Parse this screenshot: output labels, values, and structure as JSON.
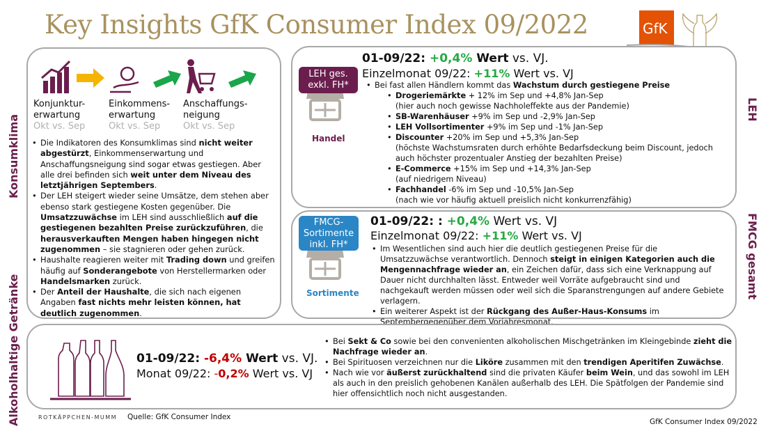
{
  "title": "Key Insights GfK Consumer Index 09/2022",
  "brand": {
    "logo_text": "GfK",
    "logo_color": "#e35205",
    "accent": "#6b1e4d",
    "green": "#27a844",
    "red": "#c00000"
  },
  "side_labels": {
    "konsumklima": "Konsumklima",
    "alkohol": "Alkoholhaltige Getränke",
    "leh": "LEH",
    "fmcg": "FMCG gesamt"
  },
  "konsumklima": {
    "indicators": [
      {
        "line1": "Konjunktur-",
        "line2": "erwartung",
        "period": "Okt vs. Sep",
        "trend": "up"
      },
      {
        "line1": "Einkommens-",
        "line2": "erwartung",
        "period": "Okt vs. Sep",
        "trend": "up"
      },
      {
        "line1": "Anschaffungs-",
        "line2": "neigung",
        "period": "Okt vs. Sep",
        "trend": "up"
      }
    ],
    "bullets": [
      [
        "Die Indikatoren des Konsumklimas sind ",
        "nicht weiter abgestürzt",
        ", Einkommenserwartung und Anschaffungsneigung sind sogar etwas gestiegen. Aber alle drei befinden sich ",
        "weit unter dem Niveau des letztjährigen Septembers",
        "."
      ],
      [
        "Der LEH steigert wieder seine Umsätze, dem stehen aber ebenso stark gestiegene Kosten gegenüber. Die ",
        "Umsatzzuwächse",
        " im LEH sind ausschließlich ",
        "auf die gestiegenen bezahlten Preise zurückzuführen",
        ", die ",
        "herausverkauften Mengen haben hingegen nicht zugenommen",
        " – sie stagnieren oder gehen zurück."
      ],
      [
        "Haushalte reagieren weiter mit ",
        "Trading down",
        " und greifen häufig auf ",
        "Sonderangebote",
        " von Herstellermarken oder ",
        "Handelsmarken",
        " zurück."
      ],
      [
        "Der ",
        "Anteil der Haushalte",
        ", die sich nach eigenen Angaben ",
        "fast nichts mehr leisten können, hat deutlich zugenommen",
        "."
      ]
    ]
  },
  "leh": {
    "tag": [
      "LEH ges.",
      "exkl. FH*"
    ],
    "icon_label": "Handel",
    "h1": {
      "prefix": "01-09/22: ",
      "value": "+0,4%",
      "bold": " Wert",
      "suffix": " vs. VJ."
    },
    "h2": {
      "prefix": "Einzelmonat 09/22: ",
      "value": "+11%",
      "suffix": " Wert vs. VJ"
    },
    "intro": [
      "Bei fast allen Händlern kommt das ",
      "Wachstum durch gestiegene Preise"
    ],
    "items": [
      {
        "name": "Drogeriemärkte",
        "text": " + 12% im Sep und +4,8% Jan-Sep",
        "note": "(hier auch noch gewisse Nachholeffekte aus der Pandemie)"
      },
      {
        "name": "SB-Warenhäuser",
        "text": " +9% im Sep und -2,9% Jan-Sep",
        "note": ""
      },
      {
        "name": "LEH Vollsortimenter",
        "text": " +9% im Sep und -1% Jan-Sep",
        "note": ""
      },
      {
        "name": "Discounter",
        "text": " +20% im Sep und +5,3% Jan-Sep",
        "note": "(höchste Wachstumsraten durch erhöhte Bedarfsdeckung beim Discount, jedoch auch höchster prozentualer Anstieg der bezahlten Preise)"
      },
      {
        "name": "E-Commerce",
        "text": " +15% im Sep und +14,3% Jan-Sep",
        "note": "(auf niedrigem Niveau)"
      },
      {
        "name": "Fachhandel",
        "text": " -6% im Sep und -10,5% Jan-Sep",
        "note": "(nach wie vor häufig aktuell preislich nicht konkurrenzfähig)"
      }
    ]
  },
  "fmcg": {
    "tag": [
      "FMCG-",
      "Sortimente",
      "inkl. FH*"
    ],
    "icon_label": "Sortimente",
    "h1": {
      "prefix": "01-09/22: : ",
      "value": "+0,4%",
      "suffix": " Wert vs. VJ"
    },
    "h2": {
      "prefix": "Einzelmonat 09/22: ",
      "value": "+11%",
      "suffix": " Wert vs. VJ"
    },
    "bullets": [
      [
        "Im Wesentlichen sind auch hier die deutlich gestiegenen Preise für die Umsatzzuwächse verantwortlich. Dennoch ",
        "steigt in einigen Kategorien auch die Mengennachfrage wieder an",
        ", ein Zeichen dafür, dass sich eine Verknappung auf Dauer nicht durchhalten lässt. Entweder weil Vorräte aufgebraucht sind und nachgekauft werden müssen oder weil sich die Sparanstrengungen auf andere Gebiete verlagern."
      ],
      [
        "Ein weiterer Aspekt ist der ",
        "Rückgang des Außer-Haus-Konsums",
        " im Septembergegenüber dem Vorjahresmonat."
      ]
    ]
  },
  "alkohol": {
    "h1": {
      "prefix": "01-09/22: ",
      "value": "-6,4%",
      "bold": " Wert",
      "suffix": " vs. VJ."
    },
    "h2": {
      "prefix": "Monat 09/22: ",
      "minus": "-",
      "value": "0,2%",
      "suffix": " Wert vs. VJ"
    },
    "bullets": [
      [
        "Bei ",
        "Sekt & Co",
        " sowie bei den convenienten alkoholischen Mischgetränken im Kleingebinde ",
        "zieht die Nachfrage wieder an",
        "."
      ],
      [
        "Bei Spirituosen verzeichnen nur die ",
        "Liköre",
        " zusammen mit den ",
        "trendigen Aperitifen Zuwächse",
        "."
      ],
      [
        "Nach wie vor ",
        "äußerst zurückhaltend",
        " sind die privaten Käufer ",
        "beim Wein",
        ", und das sowohl im LEH als auch in den preislich gehobenen Kanälen außerhalb des LEH. Die Spätfolgen der Pandemie sind hier offensichtlich noch nicht ausgestanden."
      ]
    ]
  },
  "footer": {
    "company": "ROTKÄPPCHEN-MUMM",
    "source": "Quelle: GfK Consumer Index",
    "right": "GfK Consumer Index 09/2022"
  }
}
